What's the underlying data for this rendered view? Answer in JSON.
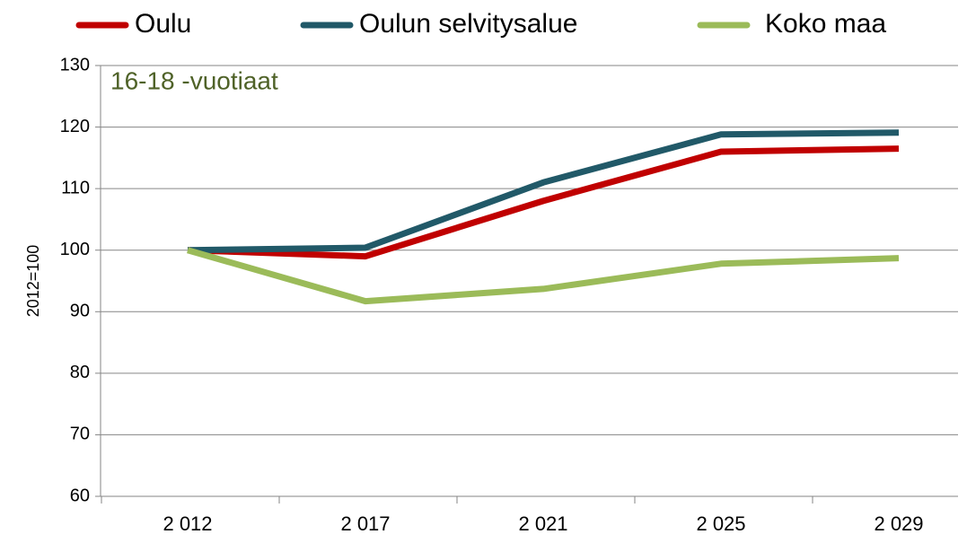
{
  "chart_data": {
    "type": "line",
    "annotation": "16-18 -vuotiaat",
    "ylabel": "2012=100",
    "categories": [
      "2 012",
      "2 017",
      "2 021",
      "2 025",
      "2 029"
    ],
    "series": [
      {
        "name": "Oulu",
        "color": "#c00000",
        "values": [
          100,
          99,
          108,
          116,
          116.5
        ]
      },
      {
        "name": "Oulun selvitysalue",
        "color": "#215968",
        "values": [
          100,
          100.4,
          111,
          118.8,
          119.1
        ]
      },
      {
        "name": "Koko maa",
        "color": "#9bbb59",
        "values": [
          100,
          91.7,
          93.7,
          97.8,
          98.7
        ]
      }
    ],
    "ylim": [
      60,
      130
    ],
    "yticks": [
      60,
      70,
      80,
      90,
      100,
      110,
      120,
      130
    ],
    "grid": true,
    "legend": "top"
  }
}
